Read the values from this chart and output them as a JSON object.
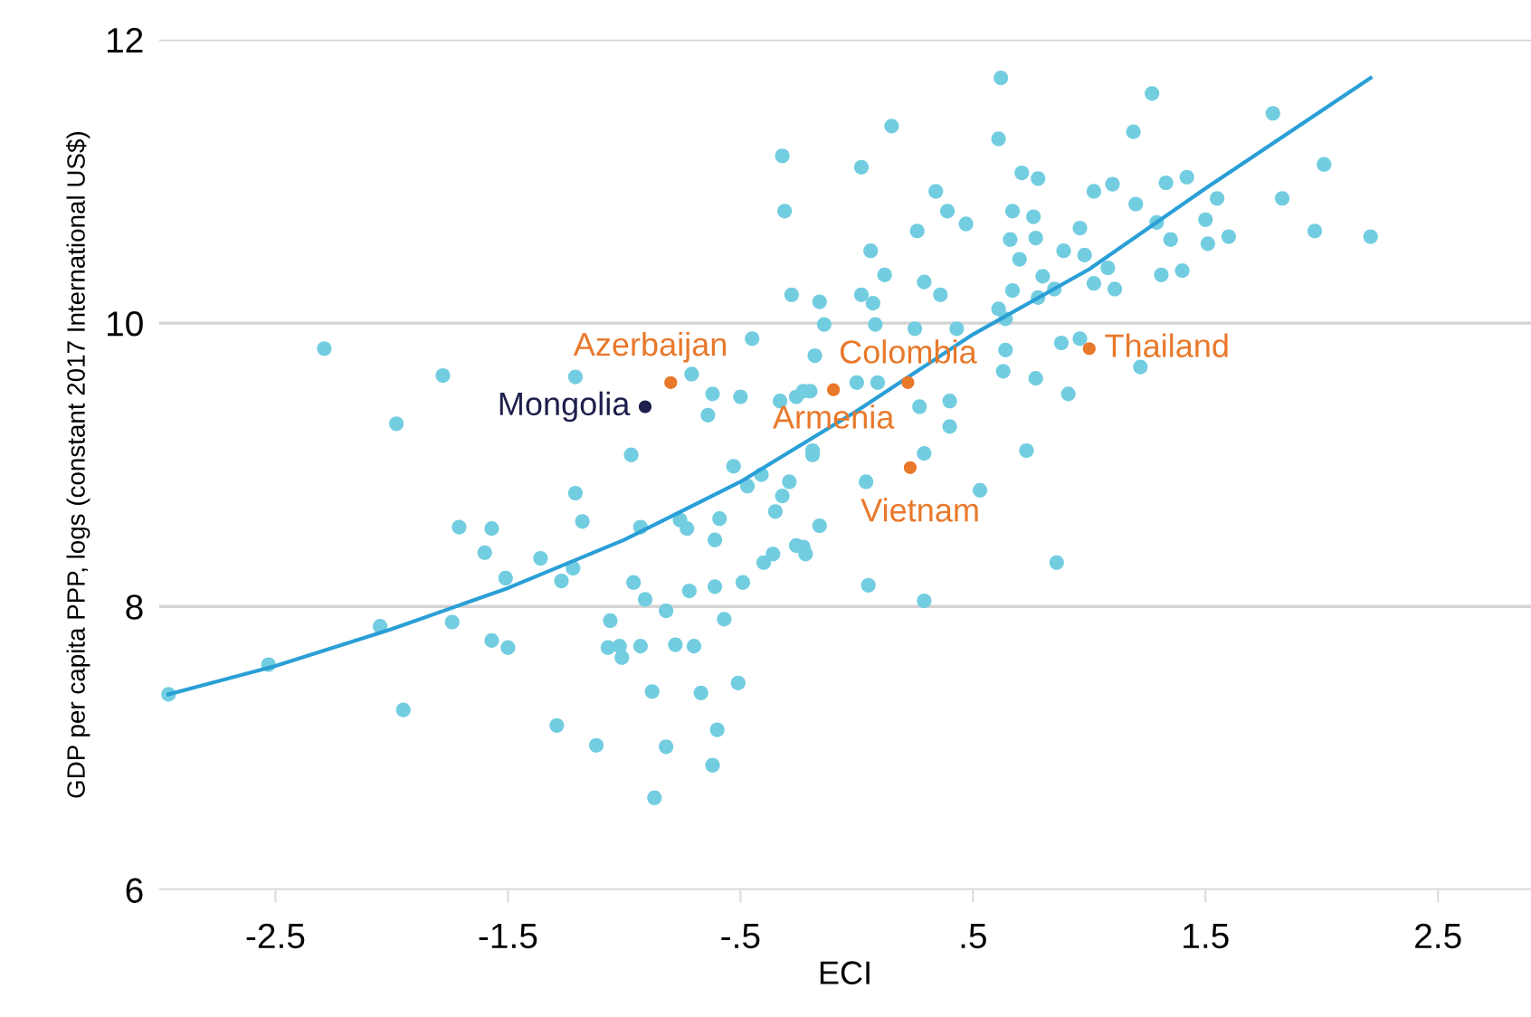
{
  "chart_data": {
    "type": "scatter",
    "xlabel": "ECI",
    "ylabel": "GDP per capita PPP, logs (constant 2017 International US$)",
    "xlim": [
      -3,
      2.9
    ],
    "ylim": [
      6,
      12
    ],
    "xticks": [
      {
        "value": -2.5,
        "label": "-2.5"
      },
      {
        "value": -1.5,
        "label": "-1.5"
      },
      {
        "value": -0.5,
        "label": "-.5"
      },
      {
        "value": 0.5,
        "label": ".5"
      },
      {
        "value": 1.5,
        "label": "1.5"
      },
      {
        "value": 2.5,
        "label": "2.5"
      }
    ],
    "yticks": [
      6,
      8,
      10,
      12
    ],
    "grid": "y",
    "legend": false,
    "marker": "circle",
    "series": [
      {
        "color": "#72cde0",
        "x": [
          -2.96,
          -2.53,
          -2.29,
          -2.05,
          -1.98,
          -1.95,
          -1.78,
          -1.74,
          -1.71,
          -1.6,
          -1.57,
          -1.57,
          -1.5,
          -1.51,
          -1.36,
          -1.29,
          -1.27,
          -1.22,
          -1.21,
          -1.18,
          -1.21,
          -1.12,
          -1.06,
          -1.07,
          -1.02,
          -1.01,
          -0.97,
          -0.96,
          -0.93,
          -0.93,
          -0.91,
          -0.88,
          -0.82,
          -0.87,
          -0.82,
          -0.78,
          -0.76,
          -0.73,
          -0.72,
          -0.7,
          -0.67,
          -0.62,
          -0.6,
          -0.61,
          -0.61,
          -0.59,
          -0.57,
          -0.53,
          -0.51,
          -0.49,
          -0.47,
          -0.41,
          -0.4,
          -0.36,
          -0.35,
          -0.32,
          -0.29,
          -0.26,
          -0.22,
          -0.19,
          -0.16,
          -0.32,
          -0.31,
          -0.71,
          -0.62,
          -0.64,
          -0.5,
          -0.45,
          -0.33,
          -0.26,
          -0.2,
          -0.19,
          -0.28,
          -0.16,
          -0.14,
          0.62,
          1.27,
          0.15,
          0.61,
          1.19,
          1.79,
          2.01,
          0.02,
          0.71,
          0.78,
          0.34,
          1.02,
          1.1,
          1.33,
          1.42,
          1.55,
          1.83,
          0.39,
          1.2,
          0.26,
          0.47,
          0.67,
          0.76,
          0.96,
          1.29,
          1.5,
          0.66,
          0.77,
          1.35,
          1.51,
          1.6,
          1.97,
          2.21,
          0.06,
          0.89,
          0.98,
          0.7,
          0.12,
          1.08,
          0.8,
          0.29,
          0.36,
          0.67,
          0.02,
          0.07,
          1.02,
          1.11,
          1.31,
          1.4,
          0.61,
          0.78,
          0.85,
          0.08,
          0.25,
          0.43,
          0.64,
          0.88,
          0.96,
          0.64,
          1.22,
          0.63,
          0.77,
          0.91,
          0.4,
          0.4,
          0.27,
          0.29,
          0.73,
          0.04,
          0.53,
          -0.23,
          0.86,
          0.05,
          0.29,
          0.0,
          0.09,
          -0.23,
          -0.18
        ],
        "values": [
          7.38,
          7.59,
          9.82,
          7.86,
          9.29,
          7.27,
          9.63,
          7.89,
          8.56,
          8.38,
          8.55,
          7.76,
          7.71,
          8.2,
          8.34,
          7.16,
          8.18,
          8.27,
          8.8,
          8.6,
          9.62,
          7.02,
          7.9,
          7.71,
          7.72,
          7.64,
          9.07,
          8.17,
          7.72,
          8.56,
          8.05,
          7.4,
          7.01,
          6.65,
          7.97,
          7.73,
          8.61,
          8.55,
          8.11,
          7.72,
          7.39,
          6.88,
          7.13,
          8.47,
          8.14,
          8.62,
          7.91,
          8.99,
          7.46,
          8.17,
          8.85,
          8.93,
          8.31,
          8.37,
          8.67,
          8.78,
          8.88,
          8.43,
          8.37,
          9.07,
          8.57,
          11.18,
          10.79,
          9.64,
          9.5,
          9.35,
          9.48,
          9.89,
          9.45,
          9.48,
          9.52,
          9.1,
          10.2,
          10.15,
          9.99,
          11.73,
          11.62,
          11.39,
          11.3,
          11.35,
          11.48,
          11.12,
          11.1,
          11.06,
          11.02,
          10.93,
          10.93,
          10.98,
          10.99,
          11.03,
          10.88,
          10.88,
          10.79,
          10.84,
          10.65,
          10.7,
          10.79,
          10.75,
          10.67,
          10.71,
          10.73,
          10.59,
          10.6,
          10.59,
          10.56,
          10.61,
          10.65,
          10.61,
          10.51,
          10.51,
          10.48,
          10.45,
          10.34,
          10.39,
          10.33,
          10.29,
          10.2,
          10.23,
          10.2,
          10.14,
          10.28,
          10.24,
          10.34,
          10.37,
          10.1,
          10.18,
          10.24,
          9.99,
          9.96,
          9.96,
          10.03,
          9.86,
          9.89,
          9.81,
          9.69,
          9.66,
          9.61,
          9.5,
          9.45,
          9.27,
          9.41,
          9.08,
          9.1,
          8.88,
          8.82,
          8.42,
          8.31,
          8.15,
          8.04,
          9.58,
          9.58,
          9.52,
          9.77
        ]
      },
      {
        "type": "line",
        "color": "#2a9fd6",
        "marker": "none",
        "x": [
          -2.96,
          -2.5,
          -2,
          -1.5,
          -1,
          -0.5,
          0,
          0.5,
          1,
          1.5,
          2.21
        ],
        "values": [
          7.38,
          7.58,
          7.84,
          8.13,
          8.47,
          8.88,
          9.38,
          9.92,
          10.38,
          10.95,
          11.73
        ]
      },
      {
        "name": "Azerbaijan",
        "color": "#e8782a",
        "x": [
          -0.8
        ],
        "values": [
          9.58
        ]
      },
      {
        "name": "Mongolia",
        "color": "#1f1f4d",
        "x": [
          -0.91
        ],
        "values": [
          9.41
        ]
      },
      {
        "name": "Colombia",
        "color": "#e8782a",
        "x": [
          0.22
        ],
        "values": [
          9.58
        ]
      },
      {
        "name": "Armenia",
        "color": "#e8782a",
        "x": [
          -0.1
        ],
        "values": [
          9.53
        ]
      },
      {
        "name": "Vietnam",
        "color": "#e8782a",
        "x": [
          0.23
        ],
        "values": [
          8.98
        ]
      },
      {
        "name": "Thailand",
        "color": "#e8782a",
        "x": [
          1.0
        ],
        "values": [
          9.82
        ]
      }
    ]
  }
}
